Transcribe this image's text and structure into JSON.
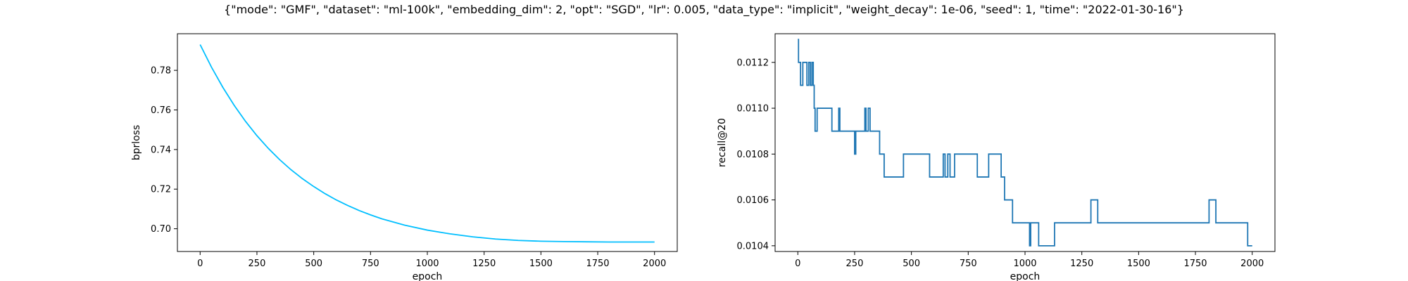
{
  "figure": {
    "title": "{\"mode\": \"GMF\", \"dataset\": \"ml-100k\", \"embedding_dim\": 2, \"opt\": \"SGD\", \"lr\": 0.005, \"data_type\": \"implicit\", \"weight_decay\": 1e-06, \"seed\": 1, \"time\": \"2022-01-30-16\"}"
  },
  "chart_data": [
    {
      "type": "line",
      "xlabel": "epoch",
      "ylabel": "bprloss",
      "xlim": [
        -100,
        2100
      ],
      "ylim": [
        0.6885,
        0.7985
      ],
      "xticks": [
        0,
        250,
        500,
        750,
        1000,
        1250,
        1500,
        1750,
        2000
      ],
      "yticks": [
        0.7,
        0.72,
        0.74,
        0.76,
        0.78
      ],
      "ytick_labels": [
        "0.70",
        "0.72",
        "0.74",
        "0.76",
        "0.78"
      ],
      "color": "#00bfff",
      "series": [
        {
          "x": [
            0,
            50,
            100,
            150,
            200,
            250,
            300,
            350,
            400,
            450,
            500,
            550,
            600,
            650,
            700,
            750,
            800,
            900,
            1000,
            1100,
            1200,
            1300,
            1400,
            1500,
            1600,
            1700,
            1800,
            1900,
            2000
          ],
          "values": [
            0.793,
            0.7816,
            0.7714,
            0.7623,
            0.7542,
            0.747,
            0.7406,
            0.7349,
            0.7298,
            0.7253,
            0.7213,
            0.7177,
            0.7145,
            0.7117,
            0.7092,
            0.707,
            0.705,
            0.7018,
            0.6993,
            0.6974,
            0.6959,
            0.6948,
            0.6941,
            0.6937,
            0.6935,
            0.6934,
            0.6933,
            0.6933,
            0.6933
          ]
        }
      ]
    },
    {
      "type": "line",
      "xlabel": "epoch",
      "ylabel": "recall@20",
      "xlim": [
        -100,
        2100
      ],
      "ylim": [
        0.010375,
        0.011325
      ],
      "xticks": [
        0,
        250,
        500,
        750,
        1000,
        1250,
        1500,
        1750,
        2000
      ],
      "yticks": [
        0.0104,
        0.0106,
        0.0108,
        0.011,
        0.0112
      ],
      "ytick_labels": [
        "0.0104",
        "0.0106",
        "0.0108",
        "0.0110",
        "0.0112"
      ],
      "color": "#1f77b4",
      "step": true,
      "series": [
        {
          "x": [
            0,
            3,
            12,
            22,
            40,
            48,
            55,
            62,
            68,
            72,
            76,
            85,
            150,
            180,
            185,
            250,
            255,
            295,
            300,
            310,
            318,
            360,
            380,
            400,
            465,
            580,
            640,
            648,
            660,
            670,
            690,
            790,
            840,
            895,
            910,
            920,
            945,
            1020,
            1025,
            1060,
            1130,
            1290,
            1320,
            1810,
            1840,
            1980,
            2000
          ],
          "values": [
            0.0113,
            0.0112,
            0.0111,
            0.0112,
            0.0111,
            0.0112,
            0.0111,
            0.0112,
            0.0111,
            0.011,
            0.0109,
            0.011,
            0.0109,
            0.011,
            0.0109,
            0.0108,
            0.0109,
            0.011,
            0.0109,
            0.011,
            0.0109,
            0.0108,
            0.0107,
            0.0107,
            0.0108,
            0.0107,
            0.0108,
            0.0107,
            0.0108,
            0.0107,
            0.0108,
            0.0107,
            0.0108,
            0.0107,
            0.0106,
            0.0106,
            0.0105,
            0.0104,
            0.0105,
            0.0104,
            0.0105,
            0.0106,
            0.0105,
            0.0106,
            0.0105,
            0.0104,
            0.0104
          ]
        }
      ]
    }
  ]
}
